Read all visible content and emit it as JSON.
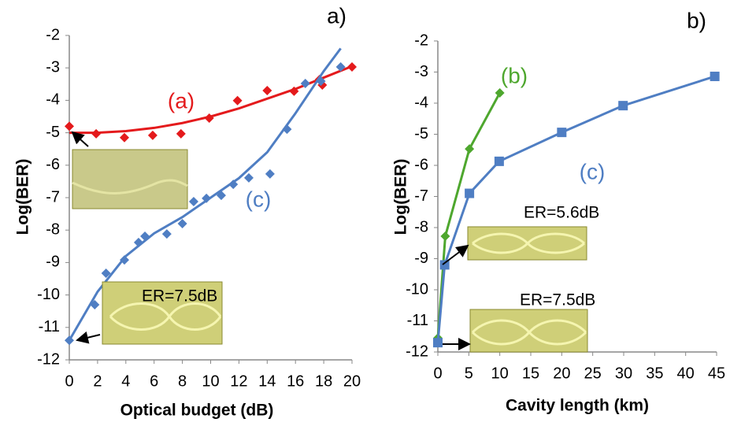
{
  "chart_data": [
    {
      "type": "scatter",
      "panel": "a)",
      "xlabel": "Optical budget (dB)",
      "ylabel": "Log(BER)",
      "xlim": [
        0,
        20
      ],
      "ylim": [
        -12,
        -2
      ],
      "xticks": [
        0,
        2,
        4,
        6,
        8,
        10,
        12,
        14,
        16,
        18,
        20
      ],
      "yticks": [
        -12,
        -11,
        -10,
        -9,
        -8,
        -7,
        -6,
        -5,
        -4,
        -3,
        -2
      ],
      "series": [
        {
          "name": "(a)",
          "color": "#e41a1c",
          "marker": "diamond",
          "line": false,
          "x": [
            0,
            1.9,
            3.9,
            5.9,
            7.9,
            9.9,
            11.9,
            14,
            15.9,
            17.7,
            17.9,
            20
          ],
          "values": [
            -4.8,
            -5.03,
            -5.15,
            -5.08,
            -5.03,
            -4.55,
            -4.01,
            -3.7,
            -3.72,
            -3.36,
            -3.53,
            -2.97
          ]
        },
        {
          "color": "#e41a1c",
          "line": true,
          "x": [
            0,
            2,
            4,
            6,
            8,
            10,
            12,
            14,
            16,
            18,
            20
          ],
          "values": [
            -5.0,
            -5.0,
            -4.95,
            -4.85,
            -4.7,
            -4.5,
            -4.25,
            -3.95,
            -3.65,
            -3.3,
            -2.95
          ]
        },
        {
          "name": "(c)",
          "color": "#4f7ec3",
          "marker": "diamond",
          "line": false,
          "x": [
            0,
            1.8,
            2.6,
            3.9,
            4.9,
            5.35,
            6.9,
            8,
            8.8,
            9.7,
            10.75,
            11.6,
            12.7,
            14.2,
            15.4,
            16.7,
            17.8,
            19.2
          ],
          "values": [
            -11.4,
            -10.3,
            -9.33,
            -8.92,
            -8.38,
            -8.19,
            -8.12,
            -7.8,
            -7.12,
            -7.02,
            -6.93,
            -6.59,
            -6.39,
            -6.27,
            -4.89,
            -3.48,
            -3.41,
            -2.97
          ]
        },
        {
          "color": "#4f7ec3",
          "line": true,
          "x": [
            0,
            2,
            4,
            6,
            8,
            10,
            12,
            14,
            16,
            18,
            19.2
          ],
          "values": [
            -11.4,
            -9.9,
            -8.8,
            -8.1,
            -7.6,
            -7.0,
            -6.4,
            -5.6,
            -4.4,
            -3.1,
            -2.4
          ]
        }
      ],
      "annotations": [
        "ER=7.5dB"
      ]
    },
    {
      "type": "scatter",
      "panel": "b)",
      "xlabel": "Cavity length (km)",
      "ylabel": "Log(BER)",
      "xlim": [
        0,
        45
      ],
      "ylim": [
        -12,
        -2
      ],
      "xticks": [
        0,
        5,
        10,
        15,
        20,
        25,
        30,
        35,
        40,
        45
      ],
      "yticks": [
        -12,
        -11,
        -10,
        -9,
        -8,
        -7,
        -6,
        -5,
        -4,
        -3,
        -2
      ],
      "series": [
        {
          "name": "(b)",
          "color": "#4ea72e",
          "marker": "diamond",
          "line": true,
          "x": [
            0,
            1.2,
            5.1,
            10
          ],
          "values": [
            -11.55,
            -8.28,
            -5.47,
            -3.67
          ]
        },
        {
          "name": "(c)",
          "color": "#4f7ec3",
          "marker": "square",
          "line": true,
          "x": [
            0,
            1.1,
            5.1,
            9.9,
            20,
            29.9,
            44.7
          ],
          "values": [
            -11.7,
            -9.2,
            -6.9,
            -5.87,
            -4.94,
            -4.08,
            -3.14
          ]
        }
      ],
      "annotations": [
        "ER=5.6dB",
        "ER=7.5dB"
      ]
    }
  ]
}
